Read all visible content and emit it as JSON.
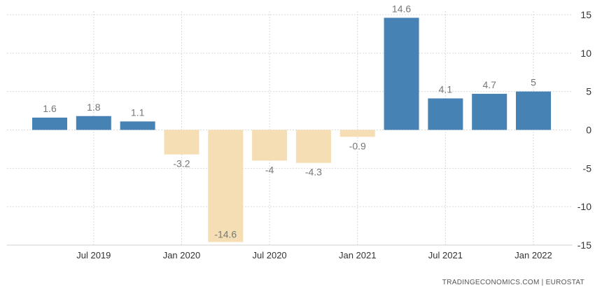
{
  "chart_data": {
    "type": "bar",
    "categories": [
      "Q2 2019",
      "Q3 2019",
      "Q4 2019",
      "Q1 2020",
      "Q2 2020",
      "Q3 2020",
      "Q4 2020",
      "Q1 2021",
      "Q2 2021",
      "Q3 2021",
      "Q4 2021",
      "Q1 2022"
    ],
    "values": [
      1.6,
      1.8,
      1.1,
      -3.2,
      -14.6,
      -4,
      -4.3,
      -0.9,
      14.6,
      4.1,
      4.7,
      5
    ],
    "value_labels": [
      "1.6",
      "1.8",
      "1.1",
      "-3.2",
      "-14.6",
      "-4",
      "-4.3",
      "-0.9",
      "14.6",
      "4.1",
      "4.7",
      "5"
    ],
    "x_tick_labels": [
      "Jul 2019",
      "Jan 2020",
      "Jul 2020",
      "Jan 2021",
      "Jul 2021",
      "Jan 2022"
    ],
    "x_tick_category_index": [
      1,
      3,
      5,
      7,
      9,
      11
    ],
    "y_ticks": [
      15,
      10,
      5,
      0,
      -5,
      -10,
      -15
    ],
    "ylim": [
      -15,
      15
    ],
    "y_axis_position": "right",
    "grid": true,
    "title": "",
    "xlabel": "",
    "ylabel": "",
    "colors": {
      "positive": "#4682b4",
      "negative": "#f5deb3",
      "label": "#777777"
    }
  },
  "source_text": "TRADINGECONOMICS.COM  |  EUROSTAT"
}
